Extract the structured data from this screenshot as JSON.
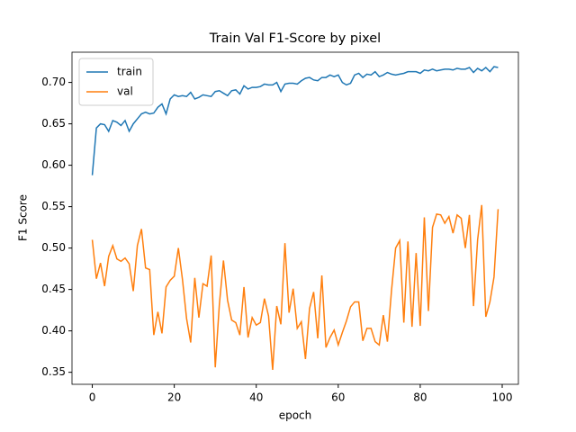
{
  "chart_data": {
    "type": "line",
    "title": "Train Val F1-Score by pixel",
    "x_label": "epoch",
    "y_label": "F1 Score",
    "x": [
      0,
      1,
      2,
      3,
      4,
      5,
      6,
      7,
      8,
      9,
      10,
      11,
      12,
      13,
      14,
      15,
      16,
      17,
      18,
      19,
      20,
      21,
      22,
      23,
      24,
      25,
      26,
      27,
      28,
      29,
      30,
      31,
      32,
      33,
      34,
      35,
      36,
      37,
      38,
      39,
      40,
      41,
      42,
      43,
      44,
      45,
      46,
      47,
      48,
      49,
      50,
      51,
      52,
      53,
      54,
      55,
      56,
      57,
      58,
      59,
      60,
      61,
      62,
      63,
      64,
      65,
      66,
      67,
      68,
      69,
      70,
      71,
      72,
      73,
      74,
      75,
      76,
      77,
      78,
      79,
      80,
      81,
      82,
      83,
      84,
      85,
      86,
      87,
      88,
      89,
      90,
      91,
      92,
      93,
      94,
      95,
      96,
      97,
      98,
      99
    ],
    "series": [
      {
        "name": "train",
        "color": "#1f77b4",
        "values": [
          0.588,
          0.645,
          0.65,
          0.649,
          0.641,
          0.654,
          0.652,
          0.648,
          0.654,
          0.641,
          0.65,
          0.656,
          0.662,
          0.664,
          0.662,
          0.663,
          0.67,
          0.674,
          0.662,
          0.68,
          0.685,
          0.683,
          0.684,
          0.683,
          0.688,
          0.68,
          0.682,
          0.685,
          0.684,
          0.683,
          0.689,
          0.69,
          0.687,
          0.684,
          0.69,
          0.691,
          0.686,
          0.696,
          0.692,
          0.694,
          0.694,
          0.695,
          0.698,
          0.697,
          0.697,
          0.7,
          0.689,
          0.698,
          0.699,
          0.699,
          0.698,
          0.702,
          0.705,
          0.706,
          0.703,
          0.702,
          0.706,
          0.706,
          0.709,
          0.707,
          0.709,
          0.7,
          0.697,
          0.699,
          0.709,
          0.711,
          0.706,
          0.71,
          0.709,
          0.713,
          0.707,
          0.709,
          0.712,
          0.71,
          0.709,
          0.71,
          0.711,
          0.713,
          0.713,
          0.713,
          0.711,
          0.715,
          0.714,
          0.716,
          0.714,
          0.715,
          0.716,
          0.716,
          0.715,
          0.717,
          0.716,
          0.716,
          0.718,
          0.712,
          0.717,
          0.714,
          0.718,
          0.713,
          0.719,
          0.718
        ]
      },
      {
        "name": "val",
        "color": "#ff7f0e",
        "values": [
          0.51,
          0.463,
          0.482,
          0.454,
          0.49,
          0.503,
          0.487,
          0.484,
          0.488,
          0.481,
          0.448,
          0.503,
          0.523,
          0.476,
          0.474,
          0.395,
          0.423,
          0.397,
          0.453,
          0.461,
          0.466,
          0.5,
          0.462,
          0.415,
          0.386,
          0.464,
          0.416,
          0.457,
          0.454,
          0.491,
          0.356,
          0.432,
          0.485,
          0.437,
          0.413,
          0.41,
          0.395,
          0.453,
          0.392,
          0.416,
          0.407,
          0.41,
          0.439,
          0.418,
          0.353,
          0.43,
          0.408,
          0.506,
          0.422,
          0.451,
          0.403,
          0.411,
          0.366,
          0.427,
          0.447,
          0.391,
          0.467,
          0.38,
          0.392,
          0.401,
          0.383,
          0.398,
          0.412,
          0.429,
          0.435,
          0.435,
          0.388,
          0.403,
          0.403,
          0.387,
          0.383,
          0.419,
          0.387,
          0.449,
          0.5,
          0.509,
          0.41,
          0.508,
          0.405,
          0.494,
          0.406,
          0.537,
          0.424,
          0.525,
          0.541,
          0.54,
          0.53,
          0.538,
          0.518,
          0.54,
          0.536,
          0.5,
          0.54,
          0.43,
          0.51,
          0.552,
          0.417,
          0.435,
          0.465,
          0.547
        ]
      }
    ],
    "xlim": [
      -4.95,
      103.95
    ],
    "ylim": [
      0.3355,
      0.7365
    ],
    "xticks": [
      0,
      20,
      40,
      60,
      80,
      100
    ],
    "yticks": [
      0.35,
      {
        "value": 0.4,
        "label": "0.40"
      },
      0.45,
      {
        "value": 0.5,
        "label": "0.50"
      },
      0.55,
      {
        "value": 0.6,
        "label": "0.60"
      },
      0.65,
      {
        "value": 0.7,
        "label": "0.70"
      }
    ],
    "legend": "upper left",
    "grid": false
  }
}
